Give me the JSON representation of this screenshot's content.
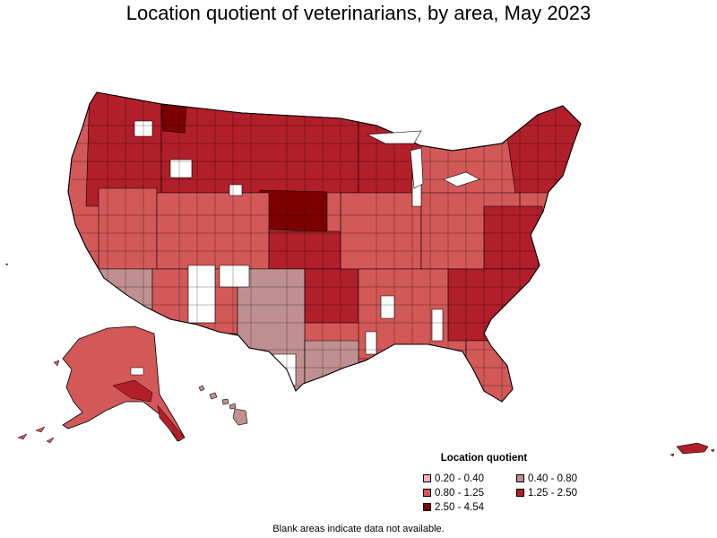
{
  "title": "Location quotient of veterinarians, by area, May 2023",
  "legend": {
    "title": "Location quotient",
    "items": [
      {
        "label": "0.20 - 0.40",
        "color": "#f2b5b5"
      },
      {
        "label": "0.40 - 0.80",
        "color": "#c09090"
      },
      {
        "label": "0.80 - 1.25",
        "color": "#d35858"
      },
      {
        "label": "1.25 - 2.50",
        "color": "#b01f2a"
      },
      {
        "label": "2.50 - 4.54",
        "color": "#7d0000"
      }
    ]
  },
  "footnote": "Blank areas indicate data not available.",
  "colors": {
    "no_data": "#ffffff",
    "border": "#000000"
  }
}
